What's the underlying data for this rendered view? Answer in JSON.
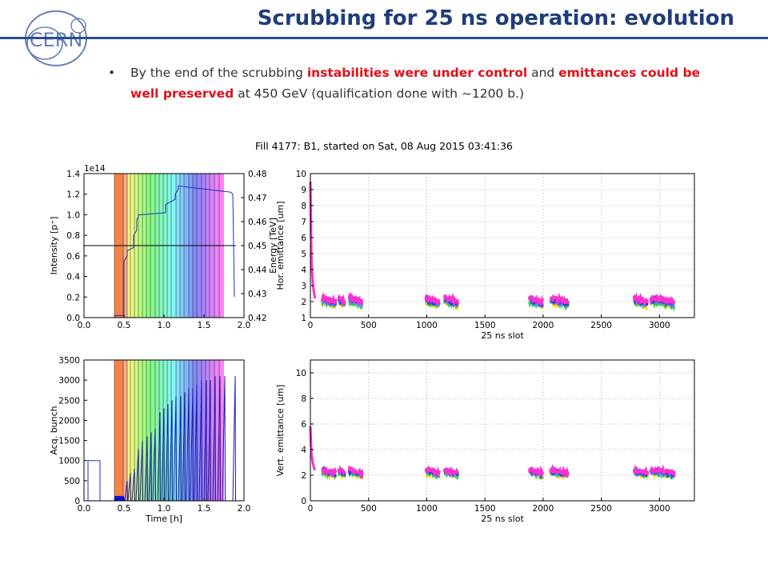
{
  "slide": {
    "title": "Scrubbing for 25 ns operation: evolution",
    "logo_text": "CERN",
    "bullet": {
      "t1": "By the end of the scrubbing ",
      "h1": "instabilities were under control",
      "t2": " and ",
      "h2": "emittances could be well preserved",
      "t3": " at 450 GeV (qualification done with ~1200 b.)"
    },
    "colors": {
      "title": "#1f3d7a",
      "rule": "#2a4d8f",
      "highlight": "#e0101a"
    }
  },
  "figure": {
    "suptitle": "Fill 4177: B1, started on Sat, 08 Aug 2015 03:41:36"
  },
  "chart_data": [
    {
      "type": "line",
      "name": "intensity-energy",
      "xlabel": "",
      "ylabel": "Intensity [p⁺]",
      "y2label": "Energy [TeV]",
      "offset_label": "1e14",
      "xlim": [
        0,
        2.0
      ],
      "ylim": [
        0,
        1.4
      ],
      "y2lim": [
        0.42,
        0.48
      ],
      "xticks": [
        "0.0",
        "0.5",
        "1.0",
        "1.5",
        "2.0"
      ],
      "yticks": [
        "0.0",
        "0.2",
        "0.4",
        "0.6",
        "0.8",
        "1.0",
        "1.2",
        "1.4"
      ],
      "y2ticks": [
        "0.42",
        "0.43",
        "0.44",
        "0.45",
        "0.46",
        "0.47",
        "0.48"
      ],
      "intensity_x": [
        0.38,
        0.38,
        0.5,
        0.5,
        0.54,
        0.54,
        0.62,
        0.62,
        0.66,
        0.66,
        0.68,
        0.68,
        0.72,
        0.72,
        1.02,
        1.02,
        1.14,
        1.14,
        1.18,
        1.18,
        1.83,
        1.86,
        1.88
      ],
      "intensity_y": [
        0.0,
        0.02,
        0.02,
        0.55,
        0.6,
        0.65,
        0.68,
        0.8,
        0.85,
        0.95,
        0.98,
        1.0,
        1.0,
        1.0,
        1.02,
        1.1,
        1.15,
        1.2,
        1.25,
        1.28,
        1.22,
        1.2,
        0.2
      ],
      "energy_x": [
        0.0,
        1.9
      ],
      "energy_y": [
        0.45,
        0.45
      ],
      "colorbands": [
        0.38,
        0.49,
        0.54,
        0.58,
        0.63,
        0.68,
        0.73,
        0.78,
        0.83,
        0.89,
        0.94,
        0.99,
        1.04,
        1.09,
        1.15,
        1.2,
        1.25,
        1.31,
        1.36,
        1.41,
        1.47,
        1.52,
        1.57,
        1.63,
        1.69,
        1.75
      ],
      "grid": false
    },
    {
      "type": "scatter",
      "name": "hor-emittance",
      "xlabel": "25 ns slot",
      "ylabel": "Hor. emittance [um]",
      "xlim": [
        0,
        3300
      ],
      "ylim": [
        1,
        10
      ],
      "xticks": [
        "0",
        "500",
        "1000",
        "1500",
        "2000",
        "2500",
        "3000"
      ],
      "yticks": [
        "1",
        "2",
        "3",
        "4",
        "5",
        "6",
        "7",
        "8",
        "9",
        "10"
      ],
      "trains": [
        [
          100,
          220
        ],
        [
          240,
          300
        ],
        [
          330,
          450
        ],
        [
          990,
          1110
        ],
        [
          1150,
          1270
        ],
        [
          1880,
          2000
        ],
        [
          2060,
          2220
        ],
        [
          2780,
          2900
        ],
        [
          2920,
          3130
        ]
      ],
      "level": 2.0,
      "startup_x": [
        0,
        5,
        10,
        20,
        30,
        40
      ],
      "startup_y": [
        9.5,
        6.5,
        4.5,
        3.2,
        2.6,
        2.2
      ],
      "grid": true
    },
    {
      "type": "line",
      "name": "acq-bunch",
      "xlabel": "Time [h]",
      "ylabel": "Acq. bunch",
      "xlim": [
        0,
        2.0
      ],
      "ylim": [
        0,
        3500
      ],
      "xticks": [
        "0.0",
        "0.5",
        "1.0",
        "1.5",
        "2.0"
      ],
      "yticks": [
        "0",
        "500",
        "1000",
        "1500",
        "2000",
        "2500",
        "3000",
        "3500"
      ],
      "base_x": [
        0.0,
        0.05,
        0.05,
        0.2,
        0.2,
        0.38,
        0.38,
        0.5,
        0.5
      ],
      "base_y": [
        0,
        0,
        1000,
        1000,
        0,
        0,
        50,
        50,
        0
      ],
      "ramps": [
        [
          0.51,
          500
        ],
        [
          0.55,
          700
        ],
        [
          0.6,
          800
        ],
        [
          0.65,
          1300
        ],
        [
          0.7,
          1500
        ],
        [
          0.76,
          1600
        ],
        [
          0.81,
          1700
        ],
        [
          0.86,
          1800
        ],
        [
          0.92,
          2200
        ],
        [
          0.97,
          2300
        ],
        [
          1.02,
          2400
        ],
        [
          1.07,
          2500
        ],
        [
          1.12,
          2600
        ],
        [
          1.18,
          2600
        ],
        [
          1.23,
          2700
        ],
        [
          1.28,
          2800
        ],
        [
          1.33,
          2800
        ],
        [
          1.38,
          2900
        ],
        [
          1.44,
          3000
        ],
        [
          1.5,
          3000
        ],
        [
          1.55,
          3000
        ],
        [
          1.61,
          3100
        ],
        [
          1.67,
          3100
        ],
        [
          1.73,
          3100
        ],
        [
          1.86,
          3100
        ]
      ],
      "grid": false
    },
    {
      "type": "scatter",
      "name": "vert-emittance",
      "xlabel": "25 ns slot",
      "ylabel": "Vert. emittance [um]",
      "xlim": [
        0,
        3300
      ],
      "ylim": [
        0,
        11
      ],
      "xticks": [
        "0",
        "500",
        "1000",
        "1500",
        "2000",
        "2500",
        "3000"
      ],
      "yticks": [
        "0",
        "2",
        "4",
        "6",
        "8",
        "10"
      ],
      "trains": [
        [
          100,
          220
        ],
        [
          240,
          300
        ],
        [
          330,
          450
        ],
        [
          990,
          1110
        ],
        [
          1150,
          1270
        ],
        [
          1880,
          2000
        ],
        [
          2060,
          2220
        ],
        [
          2780,
          2900
        ],
        [
          2920,
          3130
        ]
      ],
      "level": 2.2,
      "startup_x": [
        0,
        5,
        10,
        20,
        30,
        40
      ],
      "startup_y": [
        5.8,
        4.5,
        3.6,
        3.0,
        2.6,
        2.4
      ],
      "grid": true
    }
  ]
}
